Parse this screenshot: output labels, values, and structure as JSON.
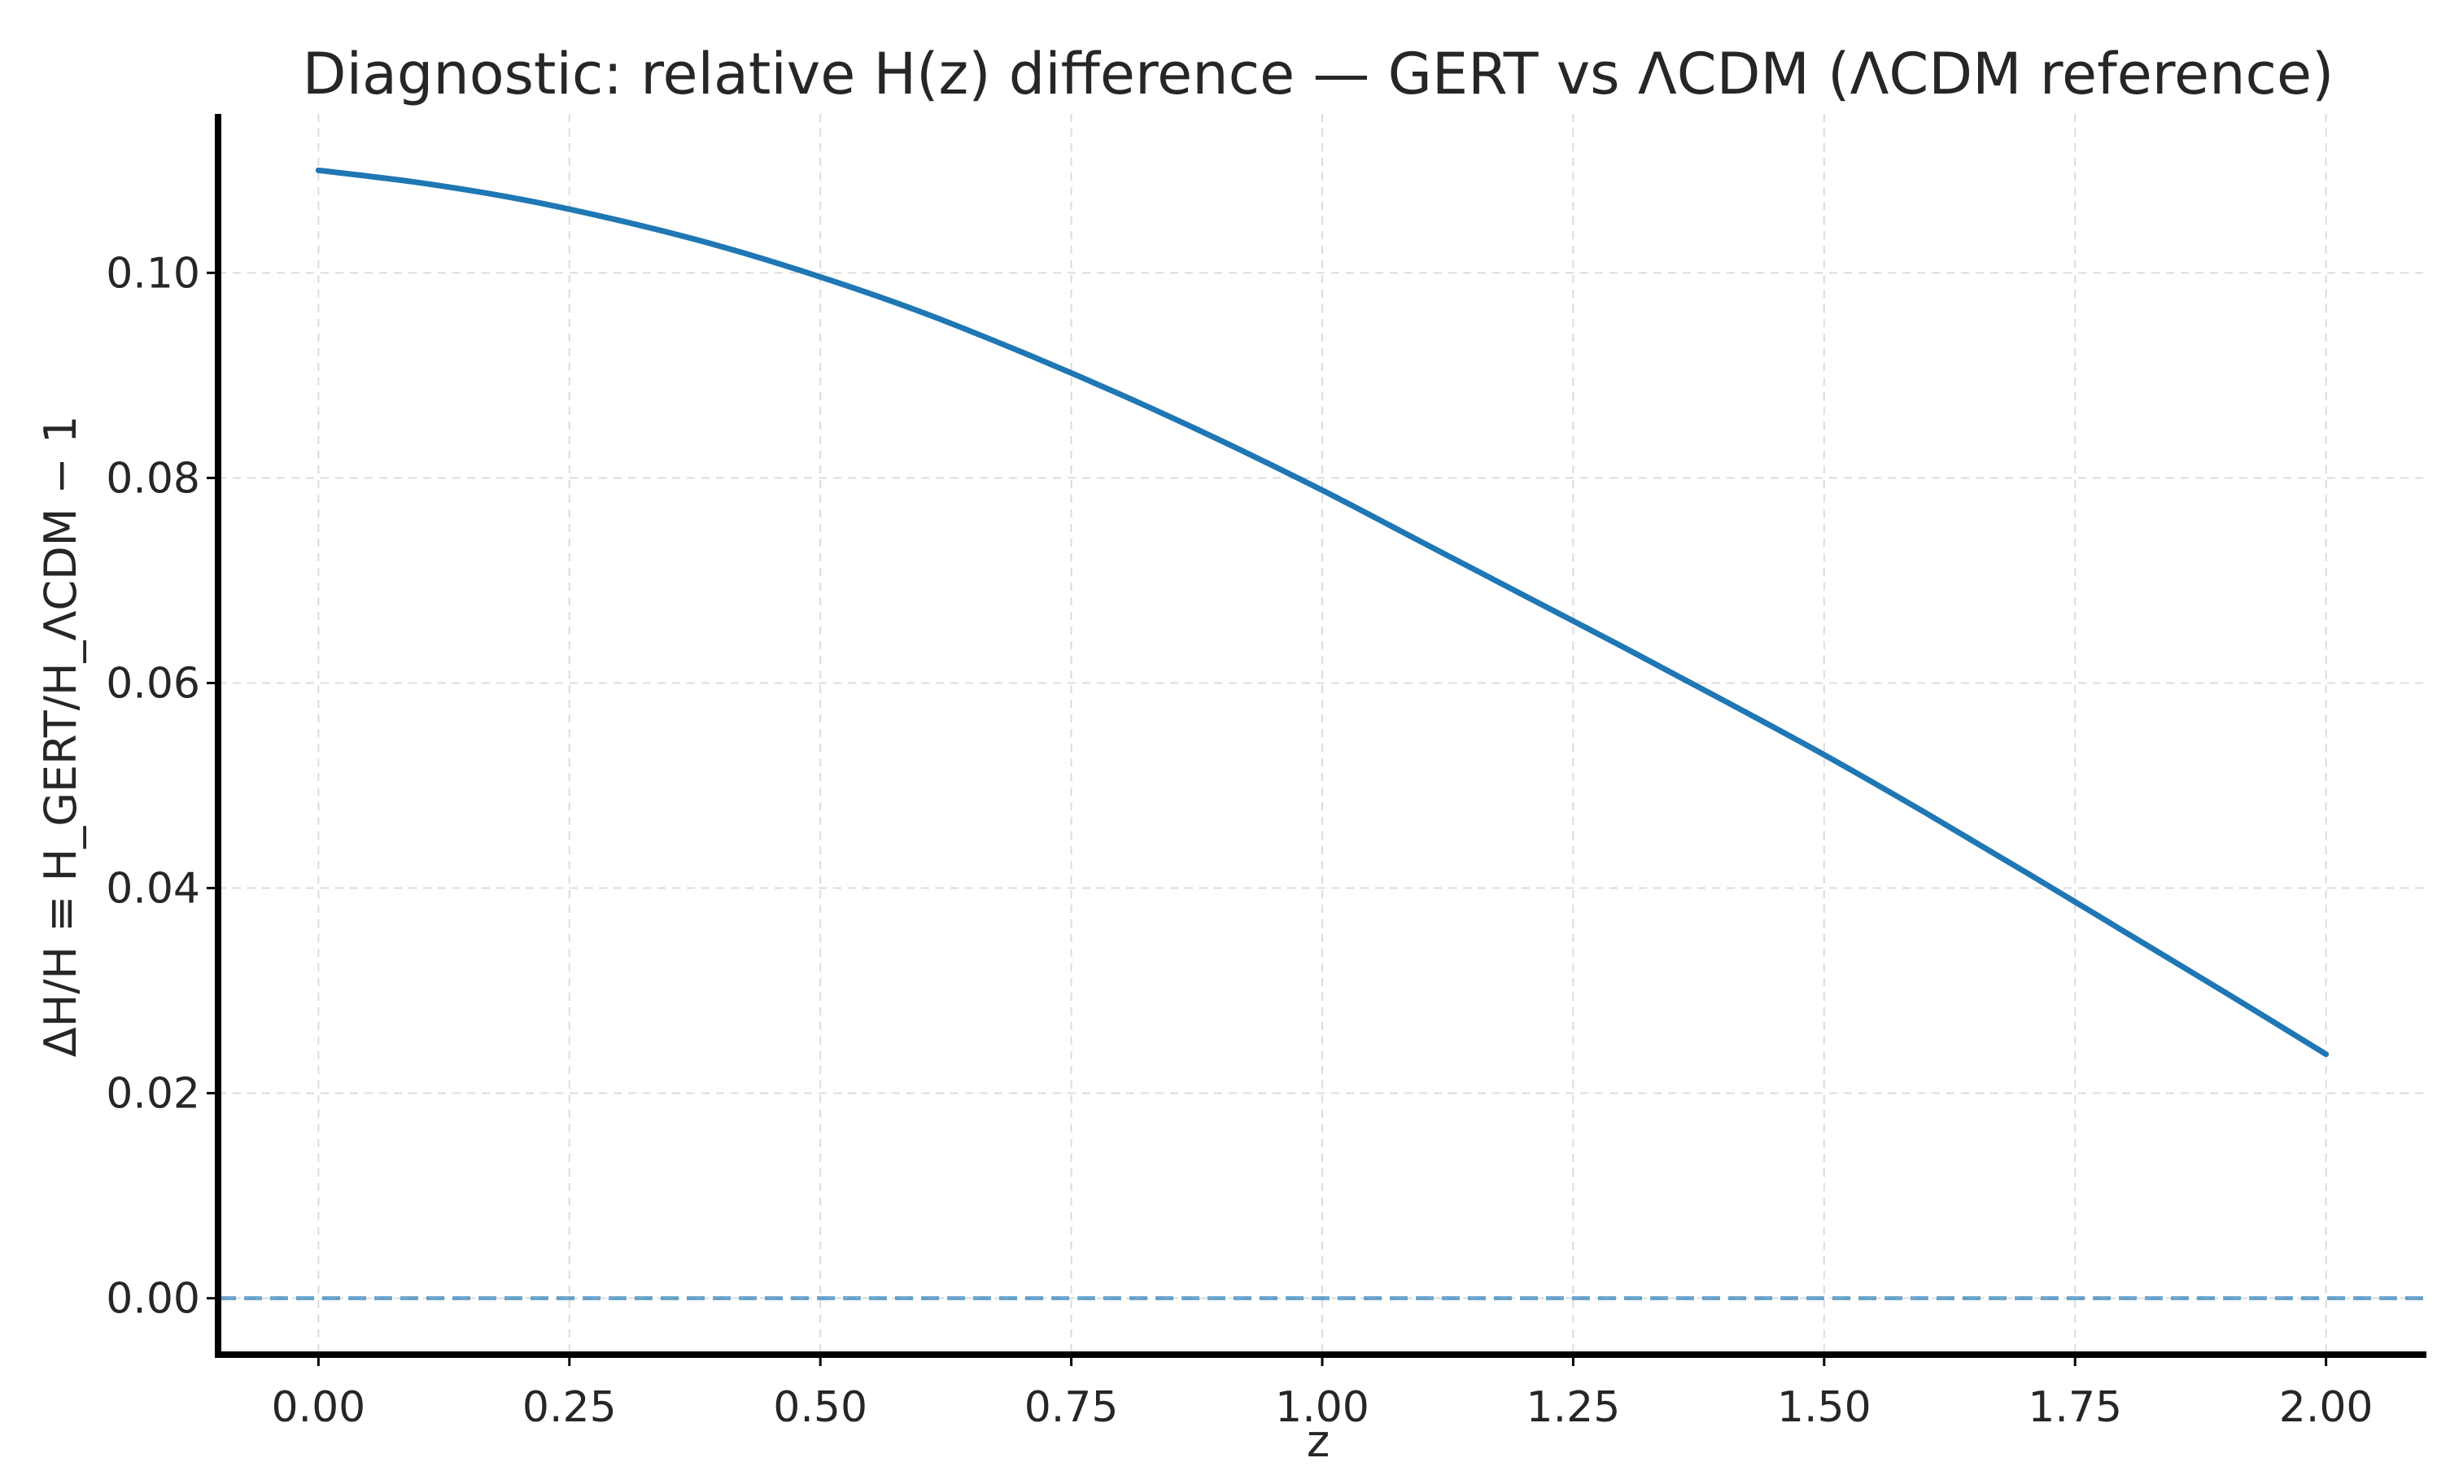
{
  "chart_data": {
    "type": "line",
    "title": "Diagnostic: relative H(z) difference — GERT vs ΛCDM (ΛCDM reference)",
    "xlabel": "z",
    "ylabel": "ΔH/H ≡ H_GERT/H_ΛCDM − 1",
    "xlim": [
      -0.1,
      2.1
    ],
    "ylim": [
      -0.0055,
      0.1155
    ],
    "xticks": [
      "0.00",
      "0.25",
      "0.50",
      "0.75",
      "1.00",
      "1.25",
      "1.50",
      "1.75",
      "2.00"
    ],
    "yticks": [
      "0.00",
      "0.02",
      "0.04",
      "0.06",
      "0.08",
      "0.10"
    ],
    "grid": true,
    "series": [
      {
        "color": "#1f77b4",
        "style": "solid",
        "x": [
          0.0,
          0.1,
          0.2,
          0.3,
          0.4,
          0.5,
          0.6,
          0.7,
          0.8,
          0.9,
          1.0,
          1.1,
          1.2,
          1.3,
          1.4,
          1.5,
          1.6,
          1.7,
          1.8,
          1.9,
          2.0
        ],
        "y": [
          0.11,
          0.1088,
          0.1072,
          0.1051,
          0.1026,
          0.0996,
          0.0962,
          0.0923,
          0.0881,
          0.0836,
          0.0788,
          0.0737,
          0.0686,
          0.0635,
          0.0583,
          0.053,
          0.0474,
          0.0416,
          0.0357,
          0.0298,
          0.0238
        ]
      },
      {
        "color": "#1f77b4",
        "style": "dashed",
        "x": [
          -0.1,
          2.1
        ],
        "y": [
          0.0,
          0.0
        ]
      }
    ]
  }
}
